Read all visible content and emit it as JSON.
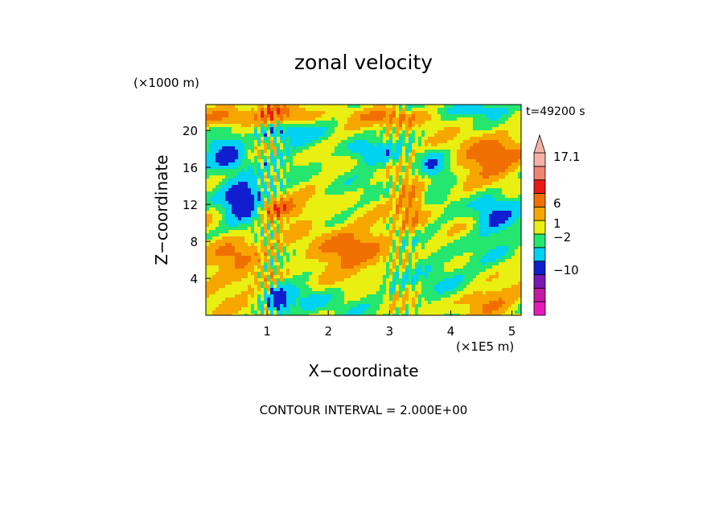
{
  "chart_data": {
    "type": "heatmap",
    "title": "zonal velocity",
    "xlabel": "X−coordinate",
    "ylabel": "Z−coordinate",
    "x_scale_label": "(×1E5 m)",
    "y_scale_label": "(×1000 m)",
    "time_label": "t=49200 s",
    "footer": "CONTOUR INTERVAL = 2.000E+00",
    "xlim": [
      0,
      5.15
    ],
    "ylim": [
      0,
      22.8
    ],
    "x_ticks": [
      "1",
      "2",
      "3",
      "4",
      "5"
    ],
    "y_ticks": [
      "4",
      "8",
      "12",
      "16",
      "20"
    ],
    "x_tick_values": [
      1,
      2,
      3,
      4,
      5
    ],
    "y_tick_values": [
      4,
      8,
      12,
      16,
      20
    ],
    "colorbar": {
      "labels": [
        "17.1",
        "6",
        "1",
        "−2",
        "−10"
      ],
      "label_values": [
        17.1,
        6,
        1,
        -2,
        -10
      ],
      "bins": [
        {
          "color": "#e41bb8"
        },
        {
          "color": "#c21aa3"
        },
        {
          "color": "#7a18b0"
        },
        {
          "color": "#101ecf"
        },
        {
          "color": "#00d2f2"
        },
        {
          "color": "#25e66e"
        },
        {
          "color": "#e9ef10"
        },
        {
          "color": "#f7a600"
        },
        {
          "color": "#ef7000"
        },
        {
          "color": "#e81a14"
        },
        {
          "color": "#f08474"
        },
        {
          "color": "#f5b2a6"
        }
      ]
    },
    "fill_levels": [
      {
        "threshold": -11,
        "color": "#7a18b0"
      },
      {
        "threshold": -4,
        "color": "#101ecf"
      },
      {
        "threshold": -1,
        "color": "#00d2f2"
      },
      {
        "threshold": 1,
        "color": "#25e66e"
      },
      {
        "threshold": 3,
        "color": "#e9ef10"
      },
      {
        "threshold": 6,
        "color": "#f7a600"
      },
      {
        "threshold": 9,
        "color": "#ef7000"
      },
      {
        "threshold": 99,
        "color": "#e81a14"
      }
    ],
    "field_features": [
      {
        "x": 0.6,
        "y": 12.5,
        "amp": -9,
        "sx": 0.35,
        "sy": 2.5
      },
      {
        "x": 0.35,
        "y": 17.5,
        "amp": -6,
        "sx": 0.3,
        "sy": 2.0
      },
      {
        "x": 1.2,
        "y": 1.5,
        "amp": -7,
        "sx": 0.15,
        "sy": 1.5
      },
      {
        "x": 1.3,
        "y": 20.0,
        "amp": -5,
        "sx": 0.5,
        "sy": 1.5
      },
      {
        "x": 2.65,
        "y": 17.5,
        "amp": -4,
        "sx": 0.4,
        "sy": 1.2
      },
      {
        "x": 3.7,
        "y": 16.0,
        "amp": -6,
        "sx": 0.25,
        "sy": 1.5
      },
      {
        "x": 4.7,
        "y": 11.0,
        "amp": -5,
        "sx": 0.35,
        "sy": 3.0
      },
      {
        "x": 4.35,
        "y": 22.3,
        "amp": -5,
        "sx": 0.5,
        "sy": 0.8
      },
      {
        "x": 0.2,
        "y": 3.5,
        "amp": 3,
        "sx": 0.6,
        "sy": 2.5
      },
      {
        "x": 0.45,
        "y": 7.0,
        "amp": 7,
        "sx": 0.4,
        "sy": 1.5
      },
      {
        "x": 1.15,
        "y": 11.5,
        "amp": 8,
        "sx": 0.4,
        "sy": 1.2
      },
      {
        "x": 1.2,
        "y": 21.5,
        "amp": 8,
        "sx": 0.5,
        "sy": 1.2
      },
      {
        "x": 0.3,
        "y": 21.5,
        "amp": 7,
        "sx": 0.4,
        "sy": 1.0
      },
      {
        "x": 2.3,
        "y": 7.0,
        "amp": 6,
        "sx": 0.7,
        "sy": 3.0
      },
      {
        "x": 4.6,
        "y": 17.0,
        "amp": 8,
        "sx": 0.5,
        "sy": 2.5
      },
      {
        "x": 3.1,
        "y": 21.5,
        "amp": 6,
        "sx": 0.6,
        "sy": 1.0
      },
      {
        "x": 3.35,
        "y": 12.0,
        "amp": 5,
        "sx": 0.25,
        "sy": 3.0
      },
      {
        "x": 4.6,
        "y": 1.5,
        "amp": 5,
        "sx": 0.5,
        "sy": 1.5
      },
      {
        "x": 3.7,
        "y": 4.5,
        "amp": -3,
        "sx": 0.5,
        "sy": 2.0
      },
      {
        "x": 1.8,
        "y": 2.0,
        "amp": -3,
        "sx": 0.6,
        "sy": 1.5
      }
    ]
  }
}
